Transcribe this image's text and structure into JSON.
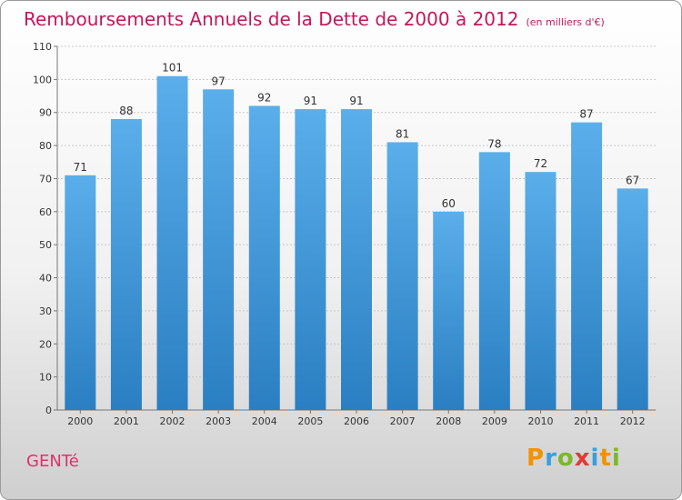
{
  "chart_data": {
    "type": "bar",
    "title": "Remboursements Annuels de la Dette de 2000 à 2012",
    "unit": "(en milliers d'€)",
    "categories": [
      "2000",
      "2001",
      "2002",
      "2003",
      "2004",
      "2005",
      "2006",
      "2007",
      "2008",
      "2009",
      "2010",
      "2011",
      "2012"
    ],
    "values": [
      71,
      88,
      101,
      97,
      92,
      91,
      91,
      81,
      60,
      78,
      72,
      87,
      67
    ],
    "ylim": [
      0,
      110
    ],
    "yticks": [
      0,
      10,
      20,
      30,
      40,
      50,
      60,
      70,
      80,
      90,
      100,
      110
    ],
    "grid": true,
    "bar_color_top": "#5aaeea",
    "bar_color_bottom": "#2a7fc2"
  },
  "commune": "GENTé",
  "logo": {
    "letters": [
      "P",
      "r",
      "o",
      "x",
      "i",
      "t",
      "i"
    ],
    "colors": [
      "#f29200",
      "#3aa0dc",
      "#7cb92a",
      "#e53935",
      "#3aa0dc",
      "#f29200",
      "#7cb92a"
    ]
  }
}
